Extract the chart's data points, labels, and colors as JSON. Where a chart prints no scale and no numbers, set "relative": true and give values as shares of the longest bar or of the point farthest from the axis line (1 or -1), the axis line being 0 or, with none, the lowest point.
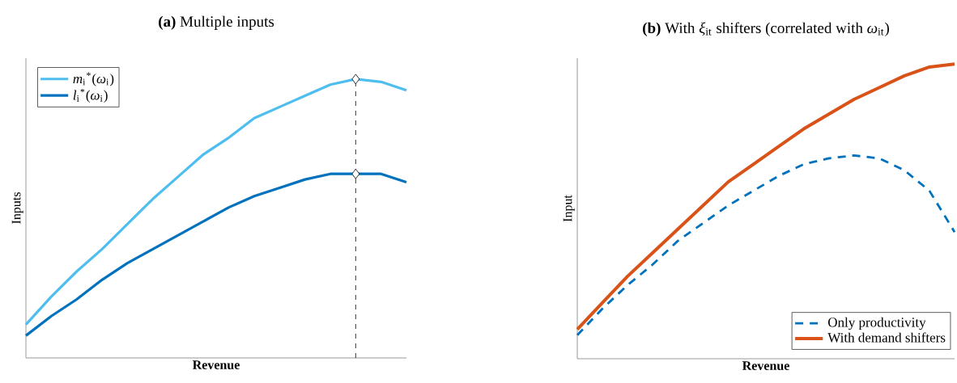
{
  "chart_data": [
    {
      "type": "line",
      "title": "**(a)** Multiple inputs",
      "xlabel": "Revenue",
      "ylabel": "Inputs",
      "relative": true,
      "legend": "top left",
      "categories": [
        null,
        null,
        null,
        null,
        null,
        null,
        null,
        null,
        null,
        null,
        null,
        null,
        null,
        null,
        null,
        null
      ],
      "series": [
        {
          "name": "*m*$_{i}$$^{*}$(*ω*$_{i}$)",
          "color": "#4dbeee",
          "values": [
            0.12,
            0.22,
            0.31,
            0.39,
            0.48,
            0.57,
            0.65,
            0.73,
            0.79,
            0.86,
            0.9,
            0.94,
            0.98,
            1,
            0.99,
            0.96
          ]
        },
        {
          "name": "*l*$_{i}$$^{*}$(*ω*$_{i}$)",
          "color": "#0072bd",
          "values": [
            0.08,
            0.15,
            0.21,
            0.28,
            0.34,
            0.39,
            0.44,
            0.49,
            0.54,
            0.58,
            0.61,
            0.64,
            0.66,
            0.66,
            0.66,
            0.63
          ]
        }
      ]
    },
    {
      "type": "line",
      "title": "**(b)** With *ξ*$_{it}$ shifters (correlated with *ω*$_{it}$)",
      "xlabel": "Revenue",
      "ylabel": "Input",
      "relative": true,
      "legend": "bottom right",
      "categories": [
        null,
        null,
        null,
        null,
        null,
        null,
        null,
        null,
        null,
        null,
        null,
        null,
        null,
        null,
        null,
        null
      ],
      "series": [
        {
          "name": "Only productivity",
          "color": "#0072bd",
          "line_style": "dashed",
          "values": [
            0.08,
            0.17,
            0.25,
            0.32,
            0.4,
            0.46,
            0.52,
            0.57,
            0.62,
            0.66,
            0.68,
            0.69,
            0.68,
            0.64,
            0.57,
            0.43
          ]
        },
        {
          "name": "With demand shifters",
          "color": "#d95319",
          "values": [
            0.1,
            0.19,
            0.28,
            0.36,
            0.44,
            0.52,
            0.6,
            0.66,
            0.72,
            0.78,
            0.83,
            0.88,
            0.92,
            0.96,
            0.99,
            1
          ]
        }
      ]
    }
  ]
}
